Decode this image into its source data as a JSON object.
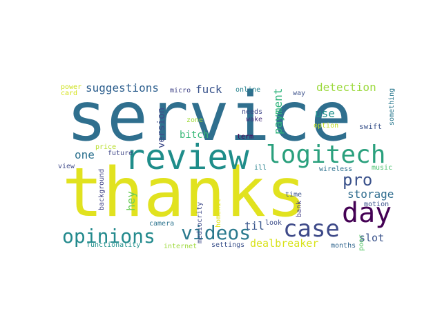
{
  "word_cloud": {
    "words": [
      {
        "text": "service",
        "color": "#2f6f8e"
      },
      {
        "text": "thanks",
        "color": "#e1e21f"
      },
      {
        "text": "review",
        "color": "#1f8d8a"
      },
      {
        "text": "logitech",
        "color": "#2aa07d"
      },
      {
        "text": "day",
        "color": "#440154"
      },
      {
        "text": "case",
        "color": "#3e4a89"
      },
      {
        "text": "opinions",
        "color": "#238a8d"
      },
      {
        "text": "videos",
        "color": "#2b7a8e"
      },
      {
        "text": "pro",
        "color": "#3b528b"
      },
      {
        "text": "storage",
        "color": "#2e6c8e"
      },
      {
        "text": "suggestions",
        "color": "#2d5f8e"
      },
      {
        "text": "fuck",
        "color": "#3a548c"
      },
      {
        "text": "detection",
        "color": "#9bd93c"
      },
      {
        "text": "payment",
        "color": "#2fb47c"
      },
      {
        "text": "use",
        "color": "#20928c"
      },
      {
        "text": "version",
        "color": "#3e4a89"
      },
      {
        "text": "bitch",
        "color": "#38b977"
      },
      {
        "text": "one",
        "color": "#2c718e"
      },
      {
        "text": "hey",
        "color": "#6ccd5a"
      },
      {
        "text": "til",
        "color": "#39568c"
      },
      {
        "text": "slot",
        "color": "#3a538b"
      },
      {
        "text": "dealbreaker",
        "color": "#d8e219"
      },
      {
        "text": "micro",
        "color": "#404387"
      },
      {
        "text": "online",
        "color": "#26828e"
      },
      {
        "text": "way",
        "color": "#3b518b"
      },
      {
        "text": "needs",
        "color": "#3f4788"
      },
      {
        "text": "zone",
        "color": "#9fda3a"
      },
      {
        "text": "option",
        "color": "#c0df25"
      },
      {
        "text": "swift",
        "color": "#3a538b"
      },
      {
        "text": "something",
        "color": "#2a788e"
      },
      {
        "text": "term",
        "color": "#440154"
      },
      {
        "text": "price",
        "color": "#b8de29"
      },
      {
        "text": "future",
        "color": "#3f4788"
      },
      {
        "text": "power",
        "color": "#cde11d"
      },
      {
        "text": "card",
        "color": "#d5e21a"
      },
      {
        "text": "view",
        "color": "#3e4989"
      },
      {
        "text": "background",
        "color": "#404387"
      },
      {
        "text": "wireless",
        "color": "#2d708e"
      },
      {
        "text": "music",
        "color": "#4ac16d"
      },
      {
        "text": "ill",
        "color": "#26828e"
      },
      {
        "text": "time",
        "color": "#3b528b"
      },
      {
        "text": "mediocrity",
        "color": "#3e4a89"
      },
      {
        "text": "homekit",
        "color": "#e2e418"
      },
      {
        "text": "bank",
        "color": "#433e85"
      },
      {
        "text": "look",
        "color": "#3d4e8a"
      },
      {
        "text": "camera",
        "color": "#2c738e"
      },
      {
        "text": "motion",
        "color": "#3b528b"
      },
      {
        "text": "functionality",
        "color": "#21918c"
      },
      {
        "text": "internet",
        "color": "#9dd93b"
      },
      {
        "text": "settings",
        "color": "#3b518b"
      },
      {
        "text": "months",
        "color": "#31668e"
      },
      {
        "text": "poor",
        "color": "#56c667"
      },
      {
        "text": "wake",
        "color": "#472f7d"
      }
    ]
  }
}
